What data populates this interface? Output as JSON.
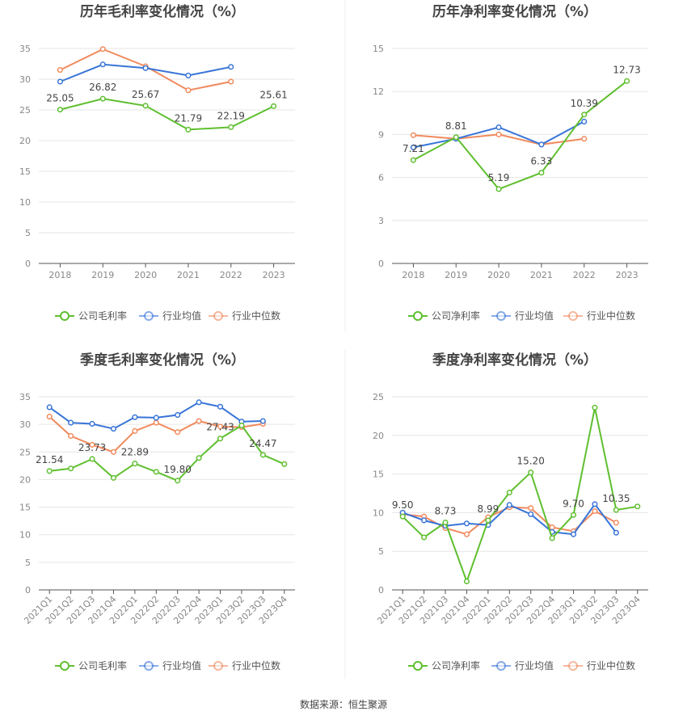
{
  "source": "数据来源：恒生聚源",
  "colors": {
    "company": "#5fbf2f",
    "avg": "#3874d8",
    "median": "#f08a5d"
  },
  "chart_data": [
    {
      "type": "line",
      "title": "历年毛利率变化情况（%）",
      "categories": [
        "2018",
        "2019",
        "2020",
        "2021",
        "2022",
        "2023"
      ],
      "ylim": [
        0,
        35
      ],
      "yticks": [
        0,
        5,
        10,
        15,
        20,
        25,
        30,
        35
      ],
      "grid": true,
      "legend_position": "bottom",
      "series": [
        {
          "name": "公司毛利率",
          "values": [
            25.05,
            26.82,
            25.67,
            21.79,
            22.19,
            25.61
          ]
        },
        {
          "name": "行业均值",
          "values": [
            29.6,
            32.4,
            31.8,
            30.6,
            32.0,
            null
          ]
        },
        {
          "name": "行业中位数",
          "values": [
            31.5,
            34.9,
            32.1,
            28.2,
            29.6,
            null
          ]
        }
      ],
      "data_labels": [
        {
          "index": 0,
          "text": "25.05"
        },
        {
          "index": 1,
          "text": "26.82"
        },
        {
          "index": 2,
          "text": "25.67"
        },
        {
          "index": 3,
          "text": "21.79"
        },
        {
          "index": 4,
          "text": "22.19"
        },
        {
          "index": 5,
          "text": "25.61"
        }
      ]
    },
    {
      "type": "line",
      "title": "历年净利率变化情况（%）",
      "categories": [
        "2018",
        "2019",
        "2020",
        "2021",
        "2022",
        "2023"
      ],
      "ylim": [
        0,
        15
      ],
      "yticks": [
        0,
        3,
        6,
        9,
        12,
        15
      ],
      "grid": true,
      "legend_position": "bottom",
      "series": [
        {
          "name": "公司净利率",
          "values": [
            7.21,
            8.81,
            5.19,
            6.33,
            10.39,
            12.73
          ]
        },
        {
          "name": "行业均值",
          "values": [
            8.1,
            8.7,
            9.5,
            8.3,
            9.9,
            null
          ]
        },
        {
          "name": "行业中位数",
          "values": [
            8.95,
            8.7,
            9.0,
            8.3,
            8.7,
            null
          ]
        }
      ],
      "data_labels": [
        {
          "index": 0,
          "text": "7.21"
        },
        {
          "index": 1,
          "text": "8.81"
        },
        {
          "index": 2,
          "text": "5.19"
        },
        {
          "index": 3,
          "text": "6.33"
        },
        {
          "index": 4,
          "text": "10.39"
        },
        {
          "index": 5,
          "text": "12.73"
        }
      ]
    },
    {
      "type": "line",
      "title": "季度毛利率变化情况（%）",
      "categories": [
        "2021Q1",
        "2021Q2",
        "2021Q3",
        "2021Q4",
        "2022Q1",
        "2022Q2",
        "2022Q3",
        "2022Q4",
        "2023Q1",
        "2023Q2",
        "2023Q3",
        "2023Q4"
      ],
      "ylim": [
        0,
        35
      ],
      "yticks": [
        0,
        5,
        10,
        15,
        20,
        25,
        30,
        35
      ],
      "grid": true,
      "legend_position": "bottom",
      "series": [
        {
          "name": "公司毛利率",
          "values": [
            21.54,
            22.0,
            23.73,
            20.3,
            22.89,
            21.4,
            19.8,
            23.9,
            27.43,
            29.8,
            24.47,
            22.8
          ]
        },
        {
          "name": "行业均值",
          "values": [
            33.1,
            30.3,
            30.1,
            29.2,
            31.3,
            31.2,
            31.7,
            34.0,
            33.2,
            30.5,
            30.6,
            null
          ]
        },
        {
          "name": "行业中位数",
          "values": [
            31.4,
            27.9,
            26.3,
            25.0,
            28.8,
            30.3,
            28.6,
            30.6,
            29.6,
            29.5,
            30.1,
            null
          ]
        }
      ],
      "data_labels": [
        {
          "index": 0,
          "text": "21.54"
        },
        {
          "index": 2,
          "text": "23.73"
        },
        {
          "index": 4,
          "text": "22.89"
        },
        {
          "index": 6,
          "text": "19.80"
        },
        {
          "index": 8,
          "text": "27.43"
        },
        {
          "index": 10,
          "text": "24.47"
        }
      ]
    },
    {
      "type": "line",
      "title": "季度净利率变化情况（%）",
      "categories": [
        "2021Q1",
        "2021Q2",
        "2021Q3",
        "2021Q4",
        "2022Q1",
        "2022Q2",
        "2022Q3",
        "2022Q4",
        "2023Q1",
        "2023Q2",
        "2023Q3",
        "2023Q4"
      ],
      "ylim": [
        0,
        25
      ],
      "yticks": [
        0,
        5,
        10,
        15,
        20,
        25
      ],
      "grid": true,
      "legend_position": "bottom",
      "series": [
        {
          "name": "公司净利率",
          "values": [
            9.5,
            6.8,
            8.73,
            1.1,
            8.99,
            12.6,
            15.2,
            6.7,
            9.7,
            23.6,
            10.35,
            10.8
          ]
        },
        {
          "name": "行业均值",
          "values": [
            10.0,
            9.0,
            8.3,
            8.6,
            8.4,
            11.0,
            9.8,
            7.5,
            7.2,
            11.1,
            7.4,
            null
          ]
        },
        {
          "name": "行业中位数",
          "values": [
            9.8,
            9.5,
            8.0,
            7.2,
            9.4,
            10.7,
            10.6,
            8.1,
            7.6,
            10.2,
            8.7,
            null
          ]
        }
      ],
      "data_labels": [
        {
          "index": 0,
          "text": "9.50"
        },
        {
          "index": 2,
          "text": "8.73"
        },
        {
          "index": 4,
          "text": "8.99"
        },
        {
          "index": 6,
          "text": "15.20"
        },
        {
          "index": 8,
          "text": "9.70"
        },
        {
          "index": 10,
          "text": "10.35"
        }
      ]
    }
  ]
}
